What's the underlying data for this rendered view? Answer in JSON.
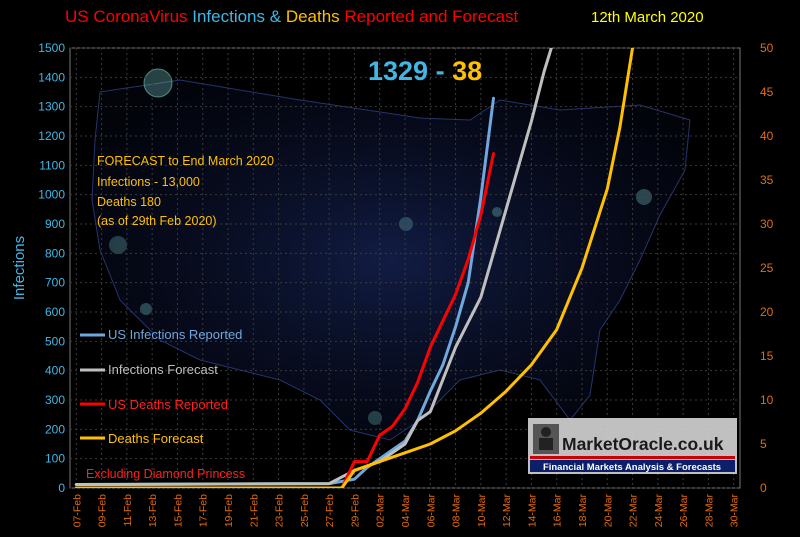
{
  "title": {
    "part1": "US CoronaVirus ",
    "part2": "Infections & ",
    "part3": "Deaths ",
    "part4": "Reported and Forecast",
    "date": "12th  March 2020"
  },
  "big_numbers": {
    "infections": "1329",
    "sep": " - ",
    "deaths": "38"
  },
  "forecast_note": {
    "lines": [
      "FORECAST to End March 2020",
      "Infections - 13,000",
      "Deaths 180",
      "(as of  29th Feb  2020)"
    ]
  },
  "footnote": "Excluding Diamond Princess",
  "branding": {
    "logo": "MarketOracle.co.uk",
    "tagline": "Financial Markets Analysis & Forecasts"
  },
  "colors": {
    "background": "#000000",
    "infections_reported": "#6fa8dc",
    "infections_forecast": "#bfbfbf",
    "deaths_reported": "#ff0000",
    "deaths_forecast": "#ffc000",
    "left_axis": "#41b6e6",
    "right_axis": "#e36c09",
    "title_red": "#ff0000",
    "title_blue": "#41b6e6",
    "title_orange": "#ffc000",
    "title_date": "#ffff00"
  },
  "chart_data": {
    "type": "line",
    "x_categories": [
      "07-Feb",
      "09-Feb",
      "11-Feb",
      "13-Feb",
      "15-Feb",
      "17-Feb",
      "19-Feb",
      "21-Feb",
      "23-Feb",
      "25-Feb",
      "27-Feb",
      "29-Feb",
      "02-Mar",
      "04-Mar",
      "06-Mar",
      "08-Mar",
      "10-Mar",
      "12-Mar",
      "14-Mar",
      "16-Mar",
      "18-Mar",
      "20-Mar",
      "22-Mar",
      "24-Mar",
      "26-Mar",
      "28-Mar",
      "30-Mar"
    ],
    "xlabel": "",
    "ylabel_left": "Infections",
    "ylim_left": [
      0,
      1500
    ],
    "yticks_left": [
      0,
      100,
      200,
      300,
      400,
      500,
      600,
      700,
      800,
      900,
      1000,
      1100,
      1200,
      1300,
      1400,
      1500
    ],
    "ylabel_right": "",
    "ylim_right": [
      0,
      50
    ],
    "yticks_right": [
      0,
      5,
      10,
      15,
      20,
      25,
      30,
      35,
      40,
      45,
      50
    ],
    "grid": true,
    "legend_placement": "left",
    "series": [
      {
        "name": "US Infections Reported",
        "axis": "left",
        "color": "#6fa8dc",
        "points": [
          [
            "07-Feb",
            12
          ],
          [
            "27-Feb",
            15
          ],
          [
            "29-Feb",
            30
          ],
          [
            "01-Mar",
            70
          ],
          [
            "02-Mar",
            100
          ],
          [
            "03-Mar",
            130
          ],
          [
            "04-Mar",
            160
          ],
          [
            "05-Mar",
            230
          ],
          [
            "06-Mar",
            330
          ],
          [
            "07-Mar",
            420
          ],
          [
            "08-Mar",
            550
          ],
          [
            "09-Mar",
            700
          ],
          [
            "10-Mar",
            990
          ],
          [
            "11-Mar",
            1329
          ]
        ]
      },
      {
        "name": "Infections Forecast",
        "axis": "left",
        "color": "#bfbfbf",
        "points": [
          [
            "07-Feb",
            12
          ],
          [
            "27-Feb",
            15
          ],
          [
            "29-Feb",
            60
          ],
          [
            "02-Mar",
            90
          ],
          [
            "04-Mar",
            150
          ],
          [
            "05-Mar",
            230
          ],
          [
            "06-Mar",
            260
          ],
          [
            "08-Mar",
            480
          ],
          [
            "10-Mar",
            650
          ],
          [
            "12-Mar",
            950
          ],
          [
            "14-Mar",
            1250
          ],
          [
            "15-Mar",
            1420
          ],
          [
            "16-Mar",
            1560
          ]
        ]
      },
      {
        "name": "US Deaths Reported",
        "axis": "right",
        "color": "#ff0000",
        "points": [
          [
            "07-Feb",
            0
          ],
          [
            "28-Feb",
            0
          ],
          [
            "29-Feb",
            3
          ],
          [
            "01-Mar",
            3
          ],
          [
            "02-Mar",
            6
          ],
          [
            "03-Mar",
            7
          ],
          [
            "04-Mar",
            9
          ],
          [
            "05-Mar",
            12
          ],
          [
            "06-Mar",
            16
          ],
          [
            "07-Mar",
            19
          ],
          [
            "08-Mar",
            22
          ],
          [
            "09-Mar",
            26
          ],
          [
            "10-Mar",
            31
          ],
          [
            "11-Mar",
            38
          ]
        ]
      },
      {
        "name": "Deaths Forecast",
        "axis": "right",
        "color": "#ffc000",
        "points": [
          [
            "07-Feb",
            0
          ],
          [
            "28-Feb",
            0
          ],
          [
            "29-Feb",
            2
          ],
          [
            "02-Mar",
            3
          ],
          [
            "04-Mar",
            4
          ],
          [
            "06-Mar",
            5
          ],
          [
            "08-Mar",
            6.5
          ],
          [
            "10-Mar",
            8.5
          ],
          [
            "12-Mar",
            11
          ],
          [
            "14-Mar",
            14
          ],
          [
            "16-Mar",
            18
          ],
          [
            "18-Mar",
            25
          ],
          [
            "20-Mar",
            34
          ],
          [
            "21-Mar",
            41
          ],
          [
            "22-Mar",
            50
          ]
        ]
      }
    ]
  }
}
